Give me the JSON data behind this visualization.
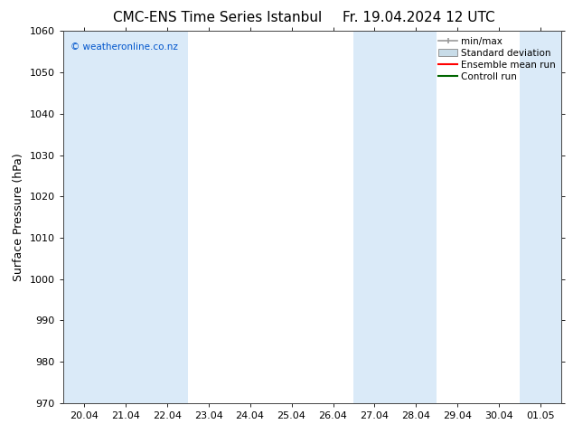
{
  "title_left": "CMC-ENS Time Series Istanbul",
  "title_right": "Fr. 19.04.2024 12 UTC",
  "ylabel": "Surface Pressure (hPa)",
  "ylim": [
    970,
    1060
  ],
  "yticks": [
    970,
    980,
    990,
    1000,
    1010,
    1020,
    1030,
    1040,
    1050,
    1060
  ],
  "xtick_labels": [
    "20.04",
    "21.04",
    "22.04",
    "23.04",
    "24.04",
    "25.04",
    "26.04",
    "27.04",
    "28.04",
    "29.04",
    "30.04",
    "01.05"
  ],
  "watermark": "© weatheronline.co.nz",
  "watermark_color": "#0055cc",
  "bg_color": "#ffffff",
  "plot_bg_color": "#ffffff",
  "shaded_columns_x": [
    0,
    1,
    2,
    7,
    8,
    11
  ],
  "shaded_color": "#daeaf8",
  "legend_entries": [
    "min/max",
    "Standard deviation",
    "Ensemble mean run",
    "Controll run"
  ],
  "legend_colors_handle": [
    "#999999",
    "#c8dce8",
    "#ff0000",
    "#006600"
  ],
  "title_fontsize": 11,
  "label_fontsize": 9,
  "tick_fontsize": 8,
  "legend_fontsize": 7.5
}
